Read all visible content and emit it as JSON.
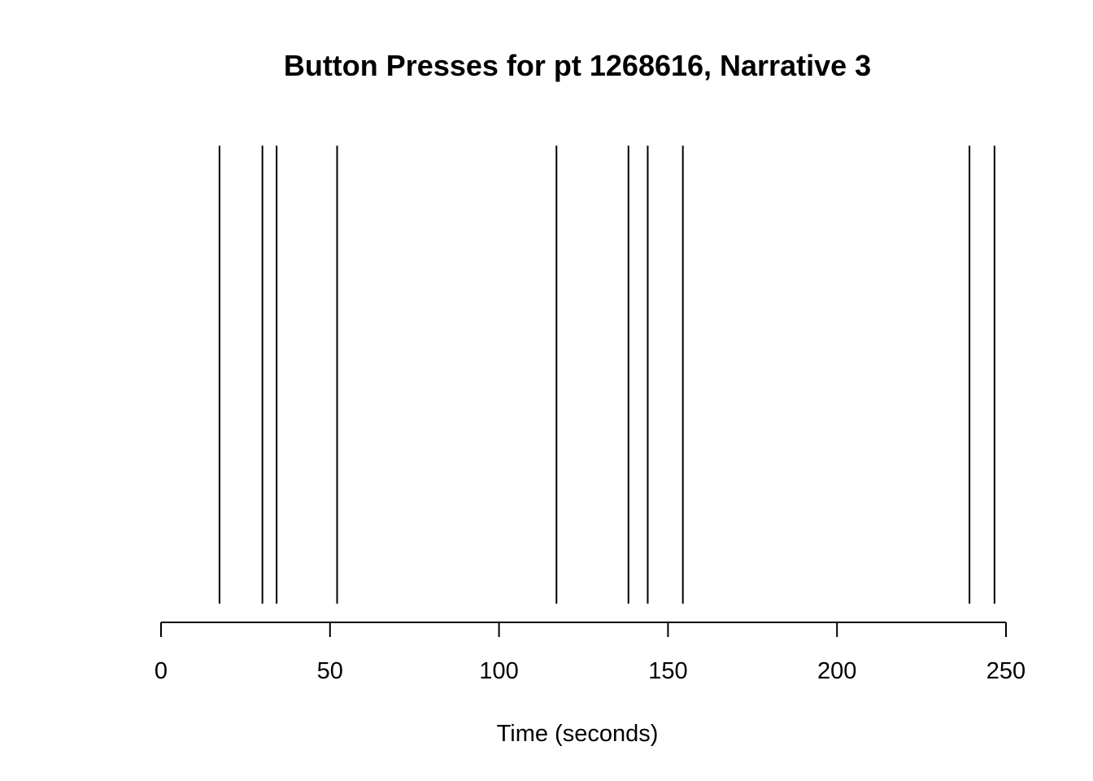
{
  "chart_data": {
    "type": "scatter",
    "mark": "vertical-line",
    "title": "Button Presses for pt 1268616, Narrative 3",
    "xlabel": "Time (seconds)",
    "ylabel": "",
    "xlim": [
      0,
      250
    ],
    "x_ticks": [
      0,
      50,
      100,
      150,
      200,
      250
    ],
    "x_tick_labels": [
      "0",
      "50",
      "100",
      "150",
      "200",
      "250"
    ],
    "press_times": [
      17.3,
      30.0,
      34.2,
      52.1,
      117.0,
      138.3,
      144.0,
      154.4,
      239.2,
      246.6
    ],
    "line_color": "#000000",
    "grid": false,
    "legend": "none"
  }
}
